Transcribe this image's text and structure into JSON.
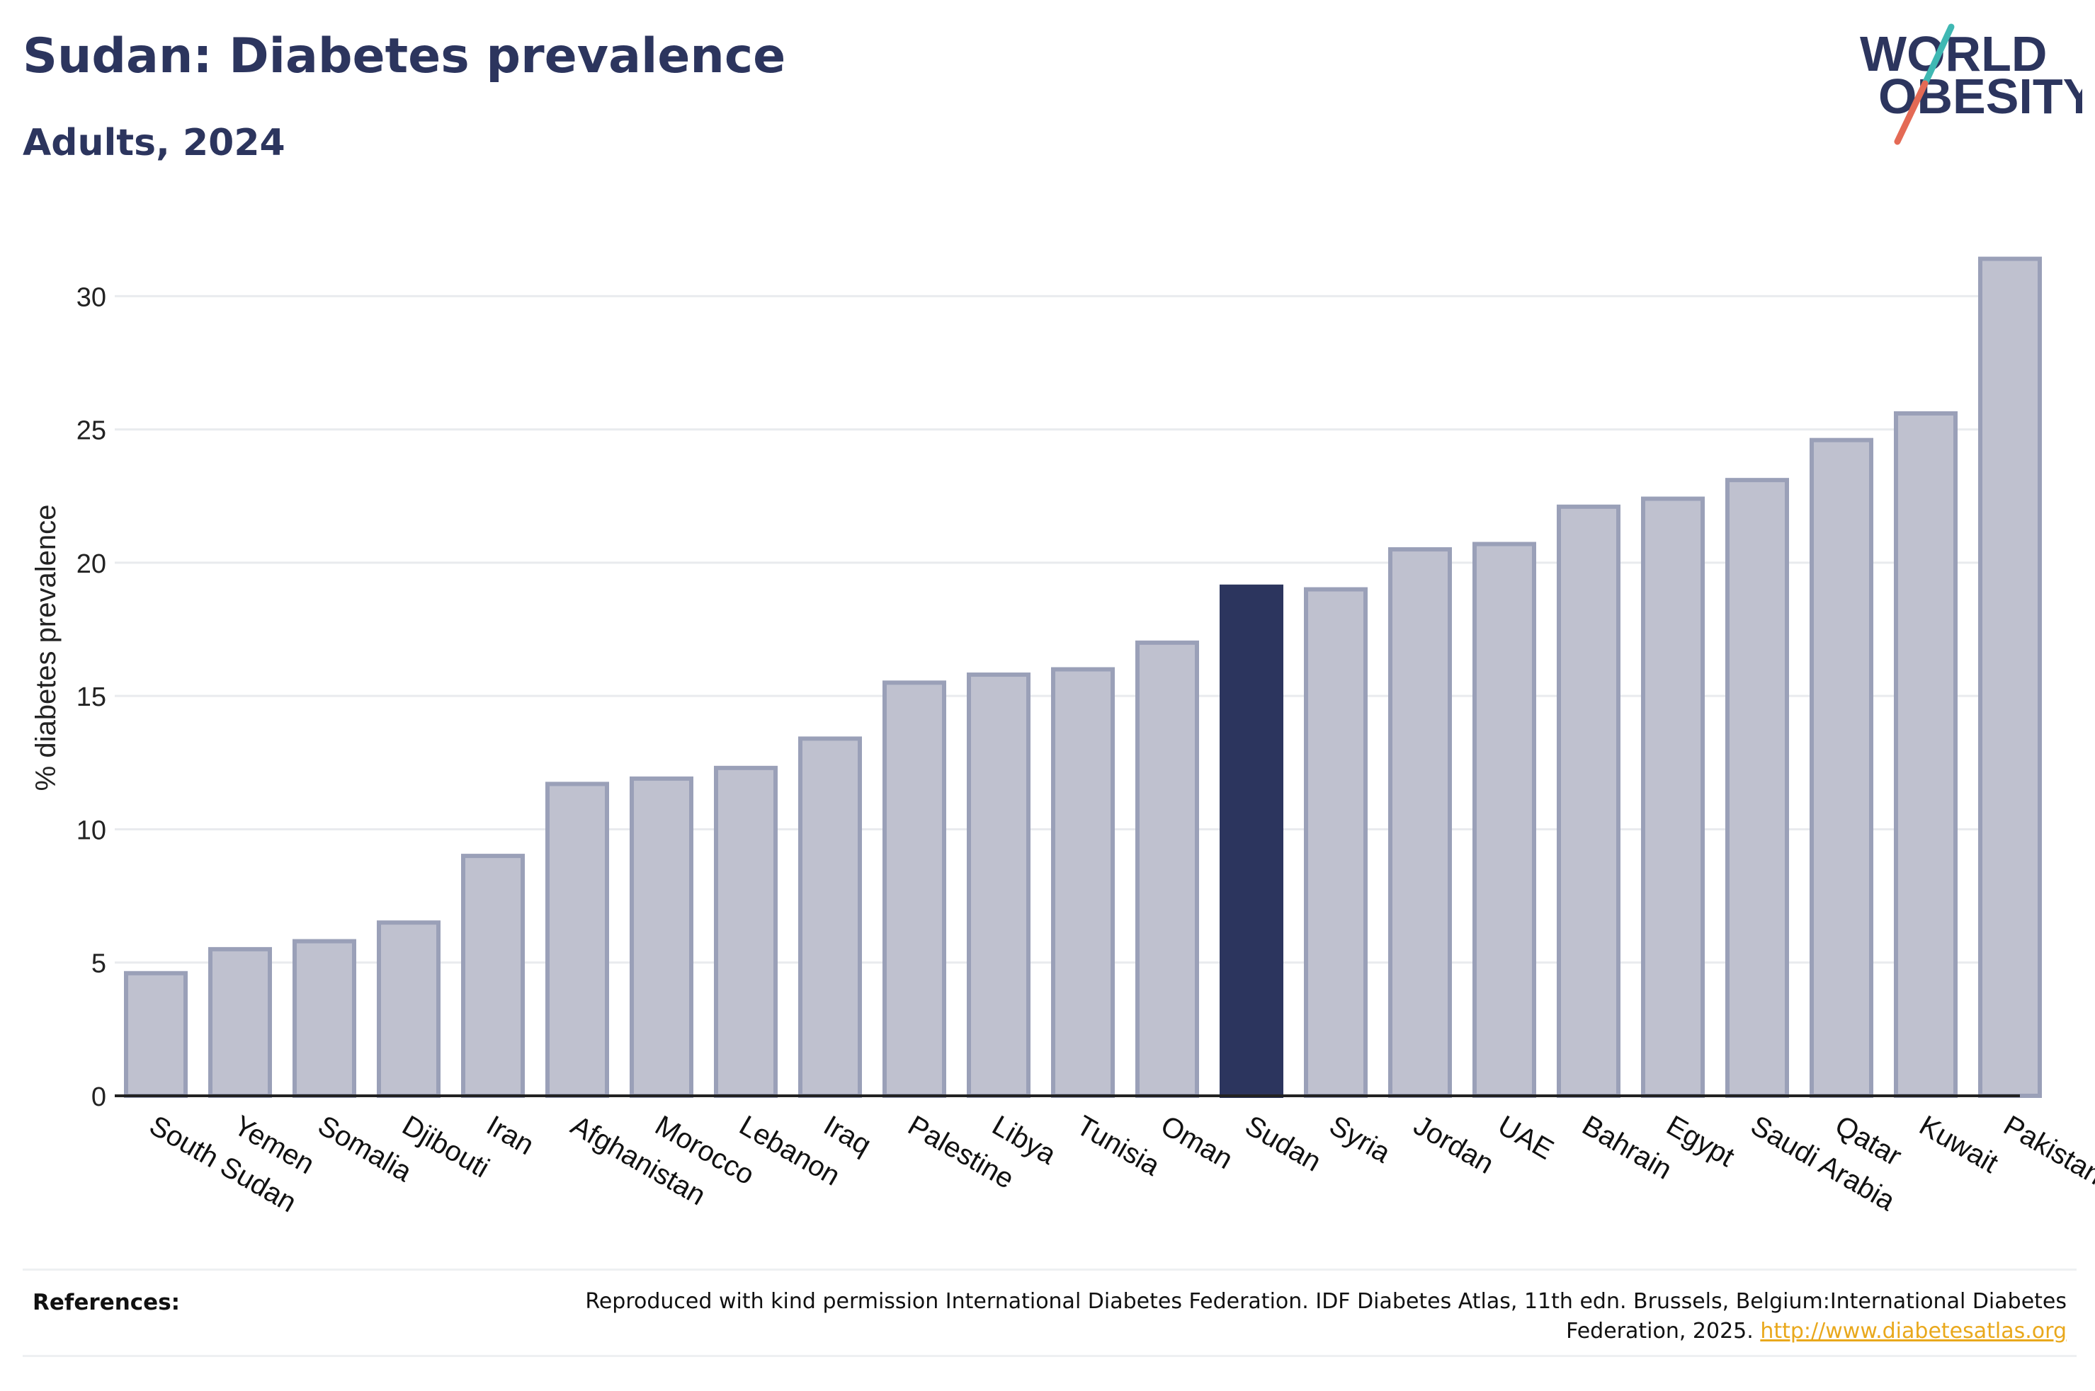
{
  "header": {
    "title": "Sudan: Diabetes prevalence",
    "subtitle": "Adults, 2024"
  },
  "logo": {
    "line1": "WORLD",
    "line2": "OBESITY"
  },
  "chart_data": {
    "type": "bar",
    "ylabel": "% diabetes prevalence",
    "ylim": [
      0,
      32
    ],
    "yticks": [
      0,
      5,
      10,
      15,
      20,
      25,
      30
    ],
    "grid": true,
    "highlight": "Sudan",
    "categories": [
      "South Sudan",
      "Yemen",
      "Somalia",
      "Djibouti",
      "Iran",
      "Afghanistan",
      "Morocco",
      "Lebanon",
      "Iraq",
      "Palestine",
      "Libya",
      "Tunisia",
      "Oman",
      "Sudan",
      "Syria",
      "Jordan",
      "UAE",
      "Bahrain",
      "Egypt",
      "Saudi Arabia",
      "Qatar",
      "Kuwait",
      "Pakistan"
    ],
    "values": [
      4.6,
      5.5,
      5.8,
      6.5,
      9.0,
      11.7,
      11.9,
      12.3,
      13.4,
      15.5,
      15.8,
      16.0,
      17.0,
      19.1,
      19.0,
      20.5,
      20.7,
      22.1,
      22.4,
      23.1,
      24.6,
      25.6,
      31.4
    ],
    "colors": {
      "bar": "#bfc1cf",
      "bar_border": "#9aa0b8",
      "highlight": "#2c355e",
      "grid": "#e9ebee",
      "axis": "#222222"
    }
  },
  "footer": {
    "label": "References:",
    "text": "Reproduced with kind permission International Diabetes Federation. IDF Diabetes Atlas, 11th edn. Brussels, Belgium:International Diabetes Federation, 2025. ",
    "link": "http://www.diabetesatlas.org"
  }
}
